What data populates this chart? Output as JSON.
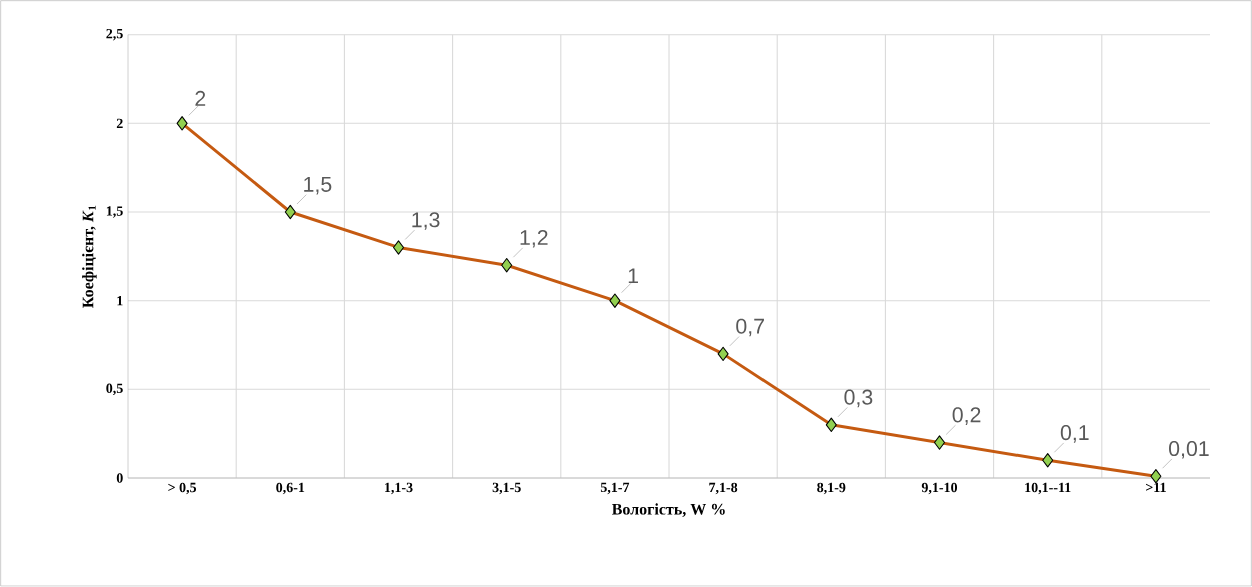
{
  "chart_data": {
    "type": "line",
    "xlabel": "Вологість, W %",
    "ylabel": "Коефіцієнт, *K*$_{1}$",
    "categories": [
      "> 0,5",
      "0,6-1",
      "1,1-3",
      "3,1-5",
      "5,1-7",
      "7,1-8",
      "8,1-9",
      "9,1-10",
      "10,1--11",
      ">11"
    ],
    "series": [
      {
        "color": "#c55a11",
        "values": [
          2,
          1.5,
          1.3,
          1.2,
          1,
          0.7,
          0.3,
          0.2,
          0.1,
          0.01
        ],
        "value_labels": [
          "2",
          "1,5",
          "1,3",
          "1,2",
          "1",
          "0,7",
          "0,3",
          "0,2",
          "0,1",
          "0,01"
        ]
      }
    ],
    "ylim": [
      0,
      2.5
    ],
    "yticks": [
      0,
      {
        "value": 0.5,
        "label": "0,5"
      },
      1,
      {
        "value": 1.5,
        "label": "1,5"
      },
      2,
      {
        "value": 2.5,
        "label": "2,5"
      }
    ],
    "grid": true,
    "marker": "diamond",
    "line_style": "solid"
  }
}
